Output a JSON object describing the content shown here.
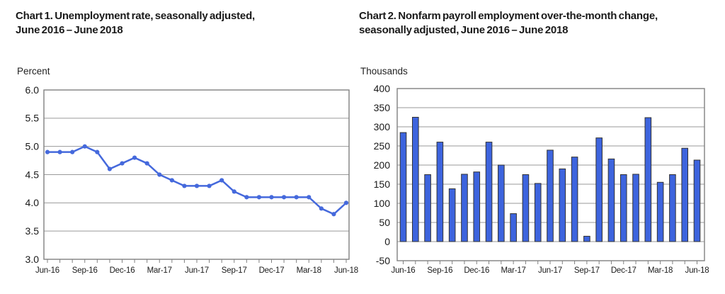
{
  "page": {
    "background": "#ffffff"
  },
  "chart_data": [
    {
      "type": "line",
      "title_line1": "Chart 1. Unemployment rate, seasonally adjusted,",
      "title_line2": "June 2016 – June 2018",
      "unit_label": "Percent",
      "categories": [
        "Jun-16",
        "Jul-16",
        "Aug-16",
        "Sep-16",
        "Oct-16",
        "Nov-16",
        "Dec-16",
        "Jan-17",
        "Feb-17",
        "Mar-17",
        "Apr-17",
        "May-17",
        "Jun-17",
        "Jul-17",
        "Aug-17",
        "Sep-17",
        "Oct-17",
        "Nov-17",
        "Dec-17",
        "Jan-18",
        "Feb-18",
        "Mar-18",
        "Apr-18",
        "May-18",
        "Jun-18"
      ],
      "values": [
        4.9,
        4.9,
        4.9,
        5.0,
        4.9,
        4.6,
        4.7,
        4.8,
        4.7,
        4.5,
        4.4,
        4.3,
        4.3,
        4.3,
        4.4,
        4.2,
        4.1,
        4.1,
        4.1,
        4.1,
        4.1,
        4.1,
        3.9,
        3.8,
        4.0
      ],
      "ylim": [
        3.0,
        6.0
      ],
      "ytick_labels": [
        "6.0",
        "5.5",
        "5.0",
        "4.5",
        "4.0",
        "3.5",
        "3.0"
      ],
      "ytick_values": [
        6.0,
        5.5,
        5.0,
        4.5,
        4.0,
        3.5,
        3.0
      ],
      "xtick_labels": [
        "Jun-16",
        "Sep-16",
        "Dec-16",
        "Mar-17",
        "Jun-17",
        "Sep-17",
        "Dec-17",
        "Mar-18",
        "Jun-18"
      ],
      "xtick_indices": [
        0,
        3,
        6,
        9,
        12,
        15,
        18,
        21,
        24
      ],
      "grid": true,
      "legend": "none",
      "line_color": "#4569DC",
      "marker": "circle"
    },
    {
      "type": "bar",
      "title_line1": "Chart 2. Nonfarm payroll employment over-the-month change,",
      "title_line2": "seasonally adjusted, June 2016 – June 2018",
      "unit_label": "Thousands",
      "categories": [
        "Jun-16",
        "Jul-16",
        "Aug-16",
        "Sep-16",
        "Oct-16",
        "Nov-16",
        "Dec-16",
        "Jan-17",
        "Feb-17",
        "Mar-17",
        "Apr-17",
        "May-17",
        "Jun-17",
        "Jul-17",
        "Aug-17",
        "Sep-17",
        "Oct-17",
        "Nov-17",
        "Dec-17",
        "Jan-18",
        "Feb-18",
        "Mar-18",
        "Apr-18",
        "May-18",
        "Jun-18"
      ],
      "values": [
        285,
        325,
        175,
        260,
        138,
        176,
        182,
        260,
        200,
        73,
        175,
        152,
        239,
        190,
        221,
        14,
        271,
        216,
        175,
        176,
        324,
        155,
        175,
        244,
        213
      ],
      "ylim": [
        -50,
        400
      ],
      "ytick_labels": [
        "400",
        "350",
        "300",
        "250",
        "200",
        "150",
        "100",
        "50",
        "0",
        "-50"
      ],
      "ytick_values": [
        400,
        350,
        300,
        250,
        200,
        150,
        100,
        50,
        0,
        -50
      ],
      "xtick_labels": [
        "Jun-16",
        "Sep-16",
        "Dec-16",
        "Mar-17",
        "Jun-17",
        "Sep-17",
        "Dec-17",
        "Mar-18",
        "Jun-18"
      ],
      "xtick_indices": [
        0,
        3,
        6,
        9,
        12,
        15,
        18,
        21,
        24
      ],
      "grid": true,
      "legend": "none",
      "bar_color": "#3D64DE",
      "bar_border_color": "#333333"
    }
  ],
  "colors": {
    "plot_border": "#808080",
    "gridline": "#9a9a9a",
    "tick": "#808080",
    "text": "#1a1a1a"
  }
}
